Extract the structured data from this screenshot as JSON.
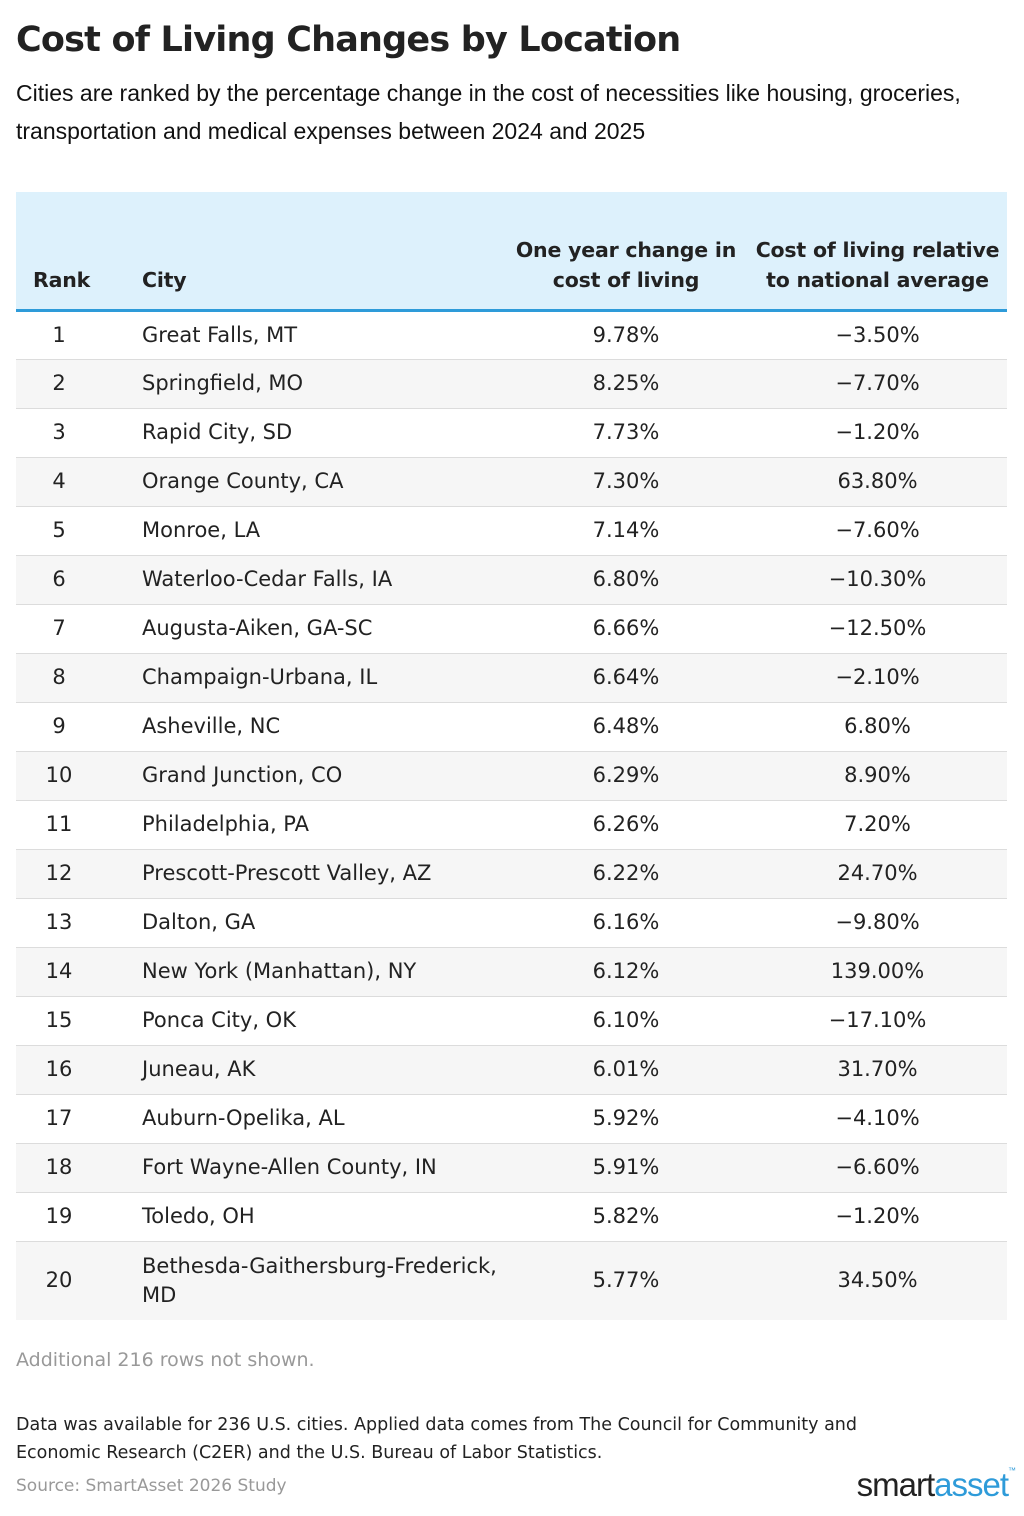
{
  "title": "Cost of Living Changes by Location",
  "subtitle": "Cities are ranked by the percentage change in the cost of necessities like housing, groceries, transportation and medical expenses between 2024 and 2025",
  "colors": {
    "header_bg": "#ddf1fc",
    "accent": "#2e9bd9",
    "row_alt": "#f6f6f6"
  },
  "chart_data": {
    "type": "table",
    "columns": [
      "Rank",
      "City",
      "One year change in cost of living",
      "Cost of living relative to national average"
    ],
    "rows": [
      {
        "rank": "1",
        "city": "Great Falls, MT",
        "change": "9.78%",
        "relative": "−3.50%"
      },
      {
        "rank": "2",
        "city": "Springfield, MO",
        "change": "8.25%",
        "relative": "−7.70%"
      },
      {
        "rank": "3",
        "city": "Rapid City, SD",
        "change": "7.73%",
        "relative": "−1.20%"
      },
      {
        "rank": "4",
        "city": "Orange County, CA",
        "change": "7.30%",
        "relative": "63.80%"
      },
      {
        "rank": "5",
        "city": "Monroe, LA",
        "change": "7.14%",
        "relative": "−7.60%"
      },
      {
        "rank": "6",
        "city": "Waterloo-Cedar Falls, IA",
        "change": "6.80%",
        "relative": "−10.30%"
      },
      {
        "rank": "7",
        "city": "Augusta-Aiken, GA-SC",
        "change": "6.66%",
        "relative": "−12.50%"
      },
      {
        "rank": "8",
        "city": "Champaign-Urbana, IL",
        "change": "6.64%",
        "relative": "−2.10%"
      },
      {
        "rank": "9",
        "city": "Asheville, NC",
        "change": "6.48%",
        "relative": "6.80%"
      },
      {
        "rank": "10",
        "city": "Grand Junction, CO",
        "change": "6.29%",
        "relative": "8.90%"
      },
      {
        "rank": "11",
        "city": "Philadelphia, PA",
        "change": "6.26%",
        "relative": "7.20%"
      },
      {
        "rank": "12",
        "city": "Prescott-Prescott Valley, AZ",
        "change": "6.22%",
        "relative": "24.70%"
      },
      {
        "rank": "13",
        "city": "Dalton, GA",
        "change": "6.16%",
        "relative": "−9.80%"
      },
      {
        "rank": "14",
        "city": "New York (Manhattan), NY",
        "change": "6.12%",
        "relative": "139.00%"
      },
      {
        "rank": "15",
        "city": "Ponca City, OK",
        "change": "6.10%",
        "relative": "−17.10%"
      },
      {
        "rank": "16",
        "city": "Juneau, AK",
        "change": "6.01%",
        "relative": "31.70%"
      },
      {
        "rank": "17",
        "city": "Auburn-Opelika, AL",
        "change": "5.92%",
        "relative": "−4.10%"
      },
      {
        "rank": "18",
        "city": "Fort Wayne-Allen County, IN",
        "change": "5.91%",
        "relative": "−6.60%"
      },
      {
        "rank": "19",
        "city": "Toledo, OH",
        "change": "5.82%",
        "relative": "−1.20%"
      },
      {
        "rank": "20",
        "city": "Bethesda-Gaithersburg-Frederick, MD",
        "change": "5.77%",
        "relative": "34.50%"
      }
    ]
  },
  "table_note": "Additional 216 rows not shown.",
  "footnote": "Data was available for 236 U.S. cities. Applied data comes from The Council for Community and Economic Research (C2ER) and the U.S. Bureau of Labor Statistics.",
  "source": "Source: SmartAsset 2026 Study",
  "logo": {
    "part1": "smart",
    "part2": "asset",
    "tm": "™"
  }
}
